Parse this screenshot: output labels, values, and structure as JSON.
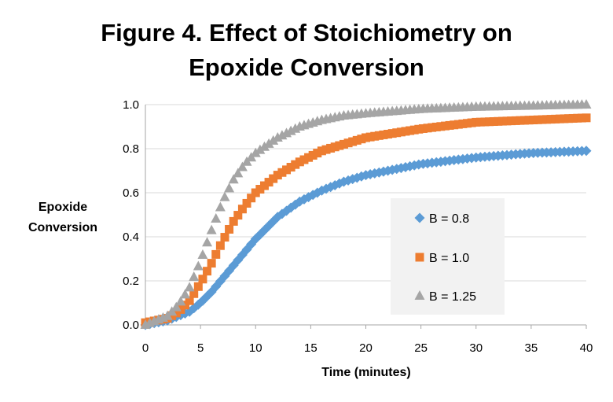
{
  "chart_data": {
    "type": "scatter",
    "title_line1": "Figure 4. Effect of Stoichiometry on",
    "title_line2": "Epoxide Conversion",
    "xlabel": "Time (minutes)",
    "ylabel_line1": "Epoxide",
    "ylabel_line2": "Conversion",
    "xlim": [
      0,
      40
    ],
    "ylim": [
      0,
      1.0
    ],
    "x_ticks": [
      "0",
      "5",
      "10",
      "15",
      "20",
      "25",
      "30",
      "35",
      "40"
    ],
    "y_ticks": [
      "0.0",
      "0.2",
      "0.4",
      "0.6",
      "0.8",
      "1.0"
    ],
    "grid": true,
    "legend_position": "right",
    "series": [
      {
        "name": "B = 0.8",
        "marker": "diamond",
        "color": "#5b9bd5",
        "x": [
          0,
          2,
          4,
          5,
          6,
          7,
          8,
          9,
          10,
          11,
          12,
          14,
          16,
          18,
          20,
          25,
          30,
          35,
          40
        ],
        "y": [
          0.0,
          0.02,
          0.06,
          0.1,
          0.15,
          0.21,
          0.27,
          0.33,
          0.39,
          0.44,
          0.49,
          0.56,
          0.61,
          0.65,
          0.68,
          0.73,
          0.76,
          0.78,
          0.79
        ]
      },
      {
        "name": "B = 1.0",
        "marker": "square",
        "color": "#ed7d31",
        "x": [
          0,
          2,
          3,
          4,
          5,
          6,
          7,
          8,
          9,
          10,
          12,
          14,
          16,
          18,
          20,
          25,
          30,
          35,
          40
        ],
        "y": [
          0.01,
          0.03,
          0.06,
          0.11,
          0.19,
          0.28,
          0.38,
          0.47,
          0.54,
          0.6,
          0.68,
          0.74,
          0.79,
          0.82,
          0.85,
          0.89,
          0.92,
          0.93,
          0.94
        ]
      },
      {
        "name": "B = 1.25",
        "marker": "triangle",
        "color": "#a5a5a5",
        "x": [
          0,
          2,
          3,
          4,
          5,
          6,
          7,
          8,
          9,
          10,
          12,
          14,
          16,
          18,
          20,
          25,
          30,
          35,
          40
        ],
        "y": [
          0.0,
          0.04,
          0.09,
          0.17,
          0.29,
          0.43,
          0.56,
          0.66,
          0.73,
          0.78,
          0.85,
          0.9,
          0.93,
          0.95,
          0.96,
          0.98,
          0.99,
          0.995,
          1.0
        ]
      }
    ]
  }
}
